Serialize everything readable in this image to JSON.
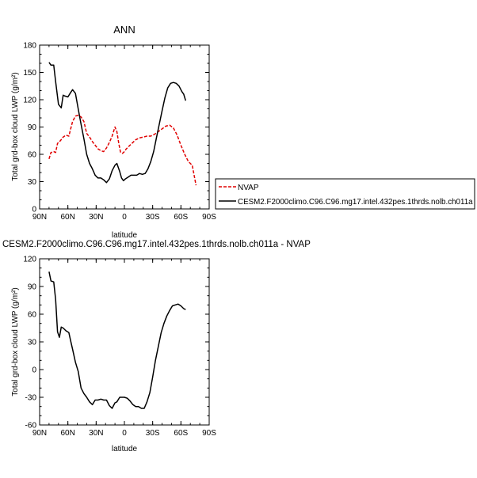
{
  "chart_data": [
    {
      "type": "line",
      "title": "ANN",
      "xlabel": "latitude",
      "ylabel": "Total grd-box cloud LWP (g/m²)",
      "xlim": [
        -90,
        90
      ],
      "ylim": [
        0,
        180
      ],
      "x_ticks": [
        -90,
        -60,
        -30,
        0,
        30,
        60,
        90
      ],
      "x_tick_labels": [
        "90N",
        "60N",
        "30N",
        "0",
        "30S",
        "60S",
        "90S"
      ],
      "y_ticks": [
        0,
        30,
        60,
        90,
        120,
        150,
        180
      ],
      "y_tick_labels": [
        "0",
        "30",
        "60",
        "90",
        "120",
        "150",
        "180"
      ],
      "grid": false,
      "legend_position": "right",
      "series": [
        {
          "name": "NVAP",
          "color": "#e00000",
          "dash": "dashed",
          "x": [
            -80,
            -78,
            -75,
            -73,
            -71,
            -68,
            -65,
            -62,
            -59,
            -57,
            -55,
            -52,
            -49,
            -46,
            -43,
            -40,
            -37,
            -34,
            -31,
            -28,
            -25,
            -22,
            -19,
            -16,
            -13,
            -10,
            -8,
            -6,
            -4,
            -2,
            0,
            2,
            5,
            8,
            12,
            16,
            20,
            24,
            28,
            32,
            36,
            40,
            44,
            48,
            52,
            56,
            60,
            64,
            68,
            72,
            76
          ],
          "y": [
            55,
            62,
            63,
            62,
            72,
            75,
            79,
            81,
            80,
            88,
            96,
            102,
            103,
            101,
            96,
            83,
            79,
            74,
            70,
            66,
            64,
            63,
            67,
            73,
            80,
            90,
            85,
            72,
            62,
            61,
            63,
            66,
            69,
            72,
            76,
            78,
            79,
            80,
            80,
            82,
            85,
            88,
            91,
            92,
            89,
            81,
            70,
            60,
            52,
            48,
            26
          ]
        },
        {
          "name": "CESM2.F2000climo.C96.C96.mg17.intel.432pes.1thrds.nolb.ch011a",
          "color": "#000000",
          "dash": "solid",
          "x": [
            -80,
            -78,
            -75,
            -73,
            -70,
            -67,
            -65,
            -63,
            -60,
            -57,
            -55,
            -52,
            -49,
            -46,
            -43,
            -40,
            -37,
            -34,
            -31,
            -28,
            -25,
            -22,
            -19,
            -16,
            -13,
            -10,
            -8,
            -5,
            -3,
            -1,
            1,
            4,
            7,
            10,
            13,
            16,
            19,
            22,
            25,
            28,
            31,
            34,
            37,
            40,
            43,
            46,
            49,
            52,
            55,
            58,
            61,
            63,
            65
          ],
          "y": [
            161,
            158,
            158,
            140,
            115,
            111,
            125,
            124,
            123,
            128,
            131,
            127,
            110,
            93,
            77,
            60,
            50,
            44,
            37,
            34,
            34,
            32,
            29,
            33,
            42,
            48,
            50,
            41,
            34,
            31,
            33,
            35,
            37,
            37,
            37,
            39,
            38,
            39,
            44,
            52,
            63,
            78,
            93,
            108,
            122,
            133,
            138,
            139,
            138,
            135,
            129,
            126,
            119
          ]
        }
      ]
    },
    {
      "type": "line",
      "title": "CESM2.F2000climo.C96.C96.mg17.intel.432pes.1thrds.nolb.ch011a - NVAP",
      "xlabel": "latitude",
      "ylabel": "Total grd-box cloud LWP (g/m²)",
      "xlim": [
        -90,
        90
      ],
      "ylim": [
        -60,
        120
      ],
      "x_ticks": [
        -90,
        -60,
        -30,
        0,
        30,
        60,
        90
      ],
      "x_tick_labels": [
        "90N",
        "60N",
        "30N",
        "0",
        "30S",
        "60S",
        "90S"
      ],
      "y_ticks": [
        -60,
        -30,
        0,
        30,
        60,
        90,
        120
      ],
      "y_tick_labels": [
        "-60",
        "-30",
        "0",
        "30",
        "60",
        "90",
        "120"
      ],
      "grid": false,
      "series": [
        {
          "color": "#000000",
          "dash": "solid",
          "x": [
            -80,
            -78,
            -75,
            -73,
            -71,
            -69,
            -67,
            -65,
            -62,
            -59,
            -57,
            -55,
            -52,
            -49,
            -46,
            -43,
            -40,
            -37,
            -34,
            -31,
            -28,
            -25,
            -22,
            -19,
            -16,
            -13,
            -10,
            -8,
            -5,
            -2,
            0,
            3,
            6,
            9,
            12,
            15,
            18,
            21,
            24,
            27,
            30,
            33,
            36,
            39,
            42,
            45,
            48,
            51,
            54,
            57,
            60,
            63,
            65
          ],
          "y": [
            106,
            96,
            95,
            76,
            41,
            35,
            46,
            45,
            42,
            40,
            31,
            22,
            8,
            -2,
            -20,
            -26,
            -30,
            -35,
            -38,
            -33,
            -33,
            -32,
            -33,
            -33,
            -39,
            -42,
            -36,
            -35,
            -30,
            -30,
            -30,
            -31,
            -34,
            -38,
            -40,
            -40,
            -42,
            -42,
            -35,
            -25,
            -8,
            10,
            25,
            40,
            50,
            58,
            64,
            69,
            70,
            71,
            69,
            66,
            65
          ]
        }
      ]
    }
  ]
}
